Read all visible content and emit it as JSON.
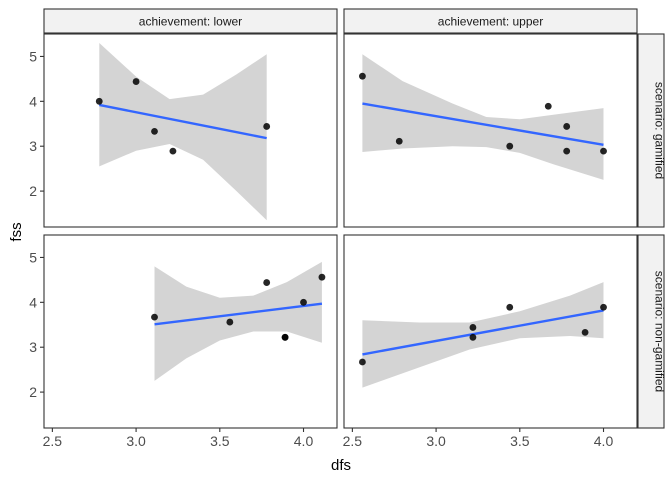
{
  "chart_data": {
    "type": "scatter",
    "xlabel": "dfs",
    "ylabel": "fss",
    "xlim": [
      2.45,
      4.2
    ],
    "ylim": [
      1.2,
      5.5
    ],
    "x_ticks": [
      2.5,
      3.0,
      3.5,
      4.0
    ],
    "x_tick_labels": [
      "2.5",
      "3.0",
      "3.5",
      "4.0"
    ],
    "y_ticks": [
      2,
      3,
      4,
      5
    ],
    "y_tick_labels": [
      "2",
      "3",
      "4",
      "5"
    ],
    "col_facet": [
      "achievement: lower",
      "achievement: upper"
    ],
    "row_facet": [
      "scenario: gamified",
      "scenario: non-gamified"
    ],
    "colors": {
      "fit_line": "#3366FF",
      "band": "#D4D4D4",
      "point": "#000000",
      "strip": "#F2F2F2",
      "border": "#333333"
    },
    "panels": [
      {
        "col": 0,
        "row": 0,
        "points": [
          [
            2.78,
            4.0
          ],
          [
            3.0,
            4.44
          ],
          [
            3.11,
            3.33
          ],
          [
            3.22,
            2.89
          ],
          [
            3.78,
            3.44
          ]
        ],
        "fit": {
          "x_start": 2.78,
          "x_end": 3.78,
          "y_start": 3.92,
          "y_end": 3.18
        },
        "band_upper": [
          [
            2.78,
            5.3
          ],
          [
            3.0,
            4.55
          ],
          [
            3.2,
            4.05
          ],
          [
            3.4,
            4.15
          ],
          [
            3.6,
            4.6
          ],
          [
            3.78,
            5.05
          ]
        ],
        "band_lower": [
          [
            2.78,
            2.55
          ],
          [
            3.0,
            2.9
          ],
          [
            3.2,
            3.05
          ],
          [
            3.4,
            2.7
          ],
          [
            3.6,
            2.0
          ],
          [
            3.78,
            1.35
          ]
        ]
      },
      {
        "col": 1,
        "row": 0,
        "points": [
          [
            2.56,
            4.56
          ],
          [
            2.78,
            3.11
          ],
          [
            3.44,
            3.0
          ],
          [
            3.67,
            3.89
          ],
          [
            3.78,
            3.44
          ],
          [
            3.78,
            2.89
          ],
          [
            4.0,
            2.89
          ]
        ],
        "fit": {
          "x_start": 2.56,
          "x_end": 4.0,
          "y_start": 3.95,
          "y_end": 3.03
        },
        "band_upper": [
          [
            2.56,
            5.05
          ],
          [
            2.8,
            4.45
          ],
          [
            3.1,
            3.95
          ],
          [
            3.3,
            3.65
          ],
          [
            3.5,
            3.6
          ],
          [
            3.7,
            3.7
          ],
          [
            4.0,
            3.85
          ]
        ],
        "band_lower": [
          [
            2.56,
            2.87
          ],
          [
            2.8,
            2.95
          ],
          [
            3.1,
            3.0
          ],
          [
            3.3,
            2.98
          ],
          [
            3.5,
            2.85
          ],
          [
            3.7,
            2.6
          ],
          [
            4.0,
            2.25
          ]
        ]
      },
      {
        "col": 0,
        "row": 1,
        "points": [
          [
            3.11,
            3.67
          ],
          [
            3.56,
            3.56
          ],
          [
            3.78,
            4.44
          ],
          [
            3.89,
            3.22
          ],
          [
            3.89,
            3.22
          ],
          [
            4.0,
            4.0
          ],
          [
            4.11,
            4.56
          ]
        ],
        "fit": {
          "x_start": 3.11,
          "x_end": 4.11,
          "y_start": 3.51,
          "y_end": 3.97
        },
        "band_upper": [
          [
            3.11,
            4.8
          ],
          [
            3.3,
            4.35
          ],
          [
            3.5,
            4.1
          ],
          [
            3.7,
            4.15
          ],
          [
            3.9,
            4.45
          ],
          [
            4.11,
            4.9
          ]
        ],
        "band_lower": [
          [
            3.11,
            2.25
          ],
          [
            3.3,
            2.75
          ],
          [
            3.5,
            3.15
          ],
          [
            3.7,
            3.35
          ],
          [
            3.9,
            3.35
          ],
          [
            4.11,
            3.1
          ]
        ]
      },
      {
        "col": 1,
        "row": 1,
        "points": [
          [
            2.56,
            2.67
          ],
          [
            3.22,
            3.44
          ],
          [
            3.22,
            3.22
          ],
          [
            3.44,
            3.89
          ],
          [
            3.89,
            3.33
          ],
          [
            4.0,
            3.89
          ]
        ],
        "fit": {
          "x_start": 2.56,
          "x_end": 4.0,
          "y_start": 2.84,
          "y_end": 3.82
        },
        "band_upper": [
          [
            2.56,
            3.6
          ],
          [
            2.9,
            3.55
          ],
          [
            3.2,
            3.55
          ],
          [
            3.5,
            3.8
          ],
          [
            3.8,
            4.15
          ],
          [
            4.0,
            4.45
          ]
        ],
        "band_lower": [
          [
            2.56,
            2.1
          ],
          [
            2.9,
            2.55
          ],
          [
            3.2,
            2.95
          ],
          [
            3.5,
            3.2
          ],
          [
            3.8,
            3.25
          ],
          [
            4.0,
            3.2
          ]
        ]
      }
    ]
  }
}
